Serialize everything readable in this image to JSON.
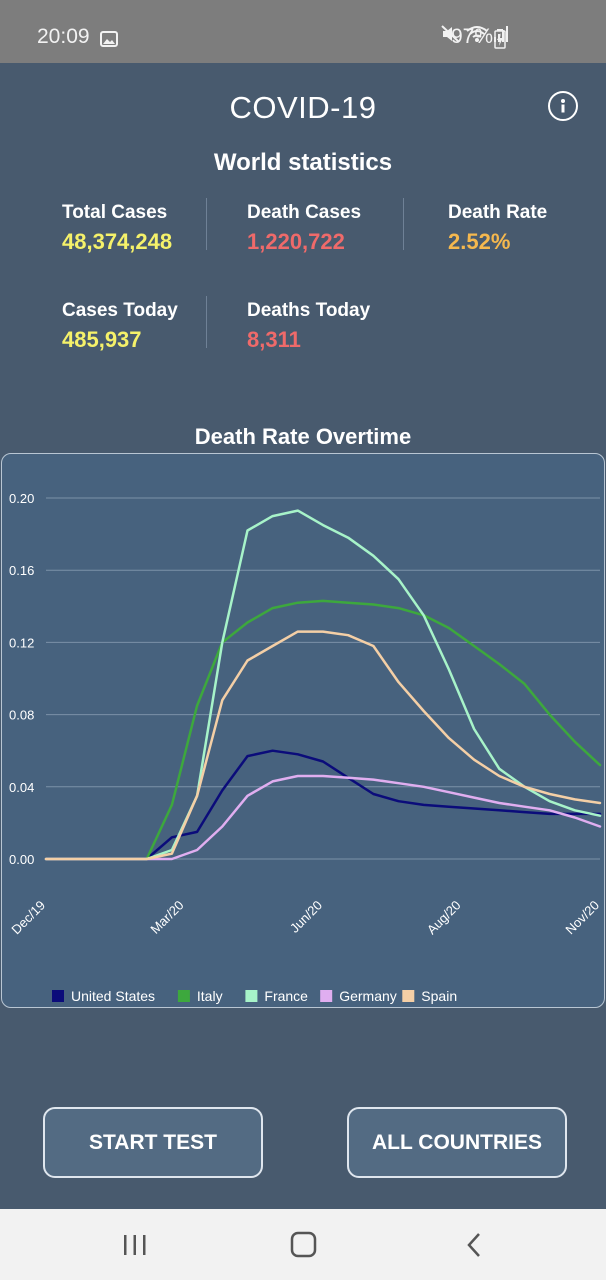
{
  "status_bar": {
    "time": "20:09",
    "battery": "97%"
  },
  "app": {
    "title": "COVID-19"
  },
  "world": {
    "heading": "World statistics",
    "stats": [
      {
        "label": "Total Cases",
        "value": "48,374,248",
        "color": "#f5f16a"
      },
      {
        "label": "Death Cases",
        "value": "1,220,722",
        "color": "#ef6a6a"
      },
      {
        "label": "Death Rate",
        "value": "2.52%",
        "color": "#f5b84e"
      },
      {
        "label": "Cases Today",
        "value": "485,937",
        "color": "#f5f16a"
      },
      {
        "label": "Deaths Today",
        "value": "8,311",
        "color": "#ef6a6a"
      }
    ]
  },
  "chart_data": {
    "type": "line",
    "title": "Death Rate Overtime",
    "xlabel": "",
    "ylabel": "",
    "x_ticks": [
      "Dec/19",
      "Mar/20",
      "Jun/20",
      "Aug/20",
      "Nov/20"
    ],
    "y_ticks": [
      "0.00",
      "0.04",
      "0.08",
      "0.12",
      "0.16",
      "0.20"
    ],
    "ylim": [
      0,
      0.2
    ],
    "grid": true,
    "legend_position": "bottom-left",
    "x_months": [
      0,
      1,
      2,
      2.5,
      3,
      3.5,
      4,
      4.5,
      5,
      5.5,
      6,
      6.5,
      7,
      7.5,
      8,
      8.5,
      9,
      9.5,
      10,
      10.5,
      11
    ],
    "series": [
      {
        "name": "United States",
        "color": "#0b0c7a",
        "values": [
          0,
          0,
          0,
          0.012,
          0.015,
          0.038,
          0.057,
          0.06,
          0.058,
          0.054,
          0.045,
          0.036,
          0.032,
          0.03,
          0.029,
          0.028,
          0.027,
          0.026,
          0.025,
          0.025,
          0.025
        ]
      },
      {
        "name": "Italy",
        "color": "#3da83d",
        "values": [
          0,
          0,
          0,
          0.03,
          0.085,
          0.12,
          0.131,
          0.139,
          0.142,
          0.143,
          0.142,
          0.141,
          0.139,
          0.135,
          0.128,
          0.118,
          0.108,
          0.097,
          0.08,
          0.065,
          0.052
        ]
      },
      {
        "name": "France",
        "color": "#a7f3c9",
        "values": [
          0,
          0,
          0,
          0.005,
          0.035,
          0.12,
          0.182,
          0.19,
          0.193,
          0.185,
          0.178,
          0.168,
          0.155,
          0.135,
          0.105,
          0.072,
          0.05,
          0.04,
          0.032,
          0.027,
          0.024
        ]
      },
      {
        "name": "Germany",
        "color": "#e0aef0",
        "values": [
          0,
          0,
          0,
          0,
          0.005,
          0.018,
          0.035,
          0.043,
          0.046,
          0.046,
          0.045,
          0.044,
          0.042,
          0.04,
          0.037,
          0.034,
          0.031,
          0.029,
          0.027,
          0.023,
          0.018
        ]
      },
      {
        "name": "Spain",
        "color": "#f4cfa6",
        "values": [
          0,
          0,
          0,
          0.003,
          0.035,
          0.088,
          0.11,
          0.118,
          0.126,
          0.126,
          0.124,
          0.118,
          0.098,
          0.082,
          0.067,
          0.055,
          0.046,
          0.04,
          0.036,
          0.033,
          0.031
        ]
      }
    ]
  },
  "buttons": {
    "start_test": "START TEST",
    "all_countries": "ALL COUNTRIES"
  }
}
